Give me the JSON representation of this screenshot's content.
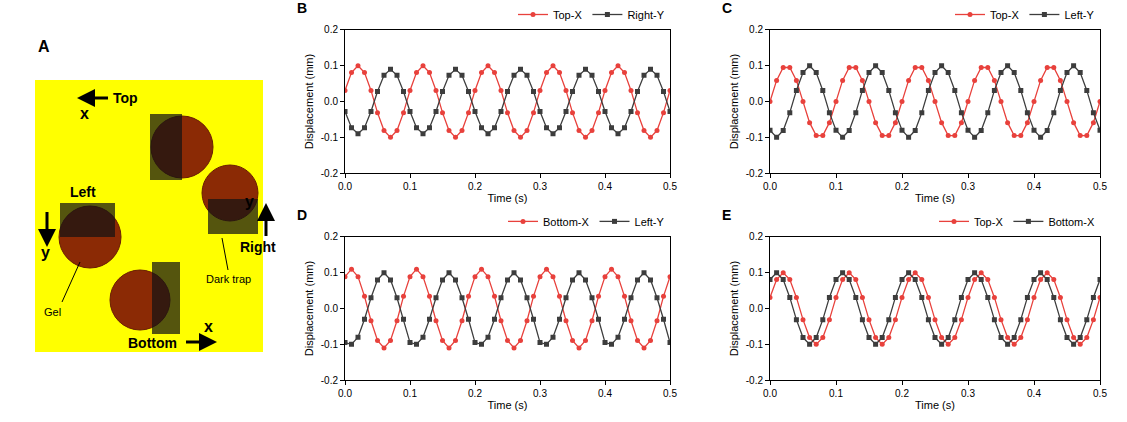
{
  "diagram": {
    "panel": "A",
    "labels": {
      "top": "Top",
      "left": "Left",
      "right": "Right",
      "bottom": "Bottom",
      "x_top": "x",
      "x_bottom": "x",
      "y_left": "y",
      "y_right": "y",
      "gel": "Gel",
      "trap": "Dark trap"
    }
  },
  "chart_data": [
    {
      "panel": "B",
      "type": "line",
      "x_label": "Time (s)",
      "y_label": "Displacement (mm)",
      "x": [
        0,
        0.01,
        0.02,
        0.03,
        0.04,
        0.05,
        0.06,
        0.07,
        0.08,
        0.09,
        0.1,
        0.11,
        0.12,
        0.13,
        0.14,
        0.15,
        0.16,
        0.17,
        0.18,
        0.19,
        0.2,
        0.21,
        0.22,
        0.23,
        0.24,
        0.25,
        0.26,
        0.27,
        0.28,
        0.29,
        0.3,
        0.31,
        0.32,
        0.33,
        0.34,
        0.35,
        0.36,
        0.37,
        0.38,
        0.39,
        0.4,
        0.41,
        0.42,
        0.43,
        0.44,
        0.45,
        0.46,
        0.47,
        0.48,
        0.49,
        0.5
      ],
      "series": [
        {
          "name": "Top-X",
          "color": "#e8413c",
          "marker": "circle",
          "values": [
            0.031,
            0.081,
            0.1,
            0.081,
            0.031,
            -0.031,
            -0.081,
            -0.1,
            -0.081,
            -0.031,
            0.031,
            0.081,
            0.1,
            0.081,
            0.031,
            -0.031,
            -0.081,
            -0.1,
            -0.081,
            -0.031,
            0.031,
            0.081,
            0.1,
            0.081,
            0.031,
            -0.031,
            -0.081,
            -0.1,
            -0.081,
            -0.031,
            0.031,
            0.081,
            0.1,
            0.081,
            0.031,
            -0.031,
            -0.081,
            -0.1,
            -0.081,
            -0.031,
            0.031,
            0.081,
            0.1,
            0.081,
            0.031,
            -0.031,
            -0.081,
            -0.1,
            -0.081,
            -0.031,
            0.031
          ]
        },
        {
          "name": "Right-Y",
          "color": "#3d3d3d",
          "marker": "square",
          "values": [
            -0.028,
            -0.073,
            -0.09,
            -0.073,
            -0.028,
            0.028,
            0.073,
            0.09,
            0.073,
            0.028,
            -0.028,
            -0.073,
            -0.09,
            -0.073,
            -0.028,
            0.028,
            0.073,
            0.09,
            0.073,
            0.028,
            -0.028,
            -0.073,
            -0.09,
            -0.073,
            -0.028,
            0.028,
            0.073,
            0.09,
            0.073,
            0.028,
            -0.028,
            -0.073,
            -0.09,
            -0.073,
            -0.028,
            0.028,
            0.073,
            0.09,
            0.073,
            0.028,
            -0.028,
            -0.073,
            -0.09,
            -0.073,
            -0.028,
            0.028,
            0.073,
            0.09,
            0.073,
            0.028,
            -0.028
          ]
        }
      ],
      "xlim": [
        0,
        0.5
      ],
      "xticks": [
        {
          "value": 0,
          "label": "0.0"
        },
        0.1,
        0.2,
        0.3,
        0.4,
        0.5
      ],
      "ylim": [
        -0.2,
        0.2
      ],
      "yticks": [
        -0.2,
        -0.1,
        {
          "value": 0,
          "label": "0.0"
        },
        0.1,
        0.2
      ],
      "legend": "top right",
      "grid": false
    },
    {
      "panel": "C",
      "type": "line",
      "x_label": "Time (s)",
      "y_label": "Displacement (mm)",
      "x": [
        0,
        0.01,
        0.02,
        0.03,
        0.04,
        0.05,
        0.06,
        0.07,
        0.08,
        0.09,
        0.1,
        0.11,
        0.12,
        0.13,
        0.14,
        0.15,
        0.16,
        0.17,
        0.18,
        0.19,
        0.2,
        0.21,
        0.22,
        0.23,
        0.24,
        0.25,
        0.26,
        0.27,
        0.28,
        0.29,
        0.3,
        0.31,
        0.32,
        0.33,
        0.34,
        0.35,
        0.36,
        0.37,
        0.38,
        0.39,
        0.4,
        0.41,
        0.42,
        0.43,
        0.44,
        0.45,
        0.46,
        0.47,
        0.48,
        0.49,
        0.5
      ],
      "series": [
        {
          "name": "Top-X",
          "color": "#e8413c",
          "marker": "circle",
          "values": [
            0,
            0.059,
            0.095,
            0.095,
            0.059,
            0,
            -0.059,
            -0.095,
            -0.095,
            -0.059,
            0,
            0.059,
            0.095,
            0.095,
            0.059,
            0,
            -0.059,
            -0.095,
            -0.095,
            -0.059,
            0,
            0.059,
            0.095,
            0.095,
            0.059,
            0,
            -0.059,
            -0.095,
            -0.095,
            -0.059,
            0,
            0.059,
            0.095,
            0.095,
            0.059,
            0,
            -0.059,
            -0.095,
            -0.095,
            -0.059,
            0,
            0.059,
            0.095,
            0.095,
            0.059,
            0,
            -0.059,
            -0.095,
            -0.095,
            -0.059,
            0
          ]
        },
        {
          "name": "Left-Y",
          "color": "#3d3d3d",
          "marker": "square",
          "values": [
            -0.08,
            -0.1,
            -0.081,
            -0.031,
            0.031,
            0.081,
            0.1,
            0.081,
            0.031,
            -0.031,
            -0.08,
            -0.1,
            -0.081,
            -0.031,
            0.031,
            0.081,
            0.1,
            0.081,
            0.031,
            -0.031,
            -0.08,
            -0.1,
            -0.081,
            -0.031,
            0.031,
            0.081,
            0.1,
            0.081,
            0.031,
            -0.031,
            -0.08,
            -0.1,
            -0.081,
            -0.031,
            0.031,
            0.081,
            0.1,
            0.081,
            0.031,
            -0.031,
            -0.08,
            -0.1,
            -0.081,
            -0.031,
            0.031,
            0.081,
            0.1,
            0.081,
            0.031,
            -0.031,
            -0.08
          ]
        }
      ],
      "xlim": [
        0,
        0.5
      ],
      "xticks": [
        {
          "value": 0,
          "label": "0.0"
        },
        0.1,
        0.2,
        0.3,
        0.4,
        0.5
      ],
      "ylim": [
        -0.2,
        0.2
      ],
      "yticks": [
        -0.2,
        -0.1,
        {
          "value": 0,
          "label": "0.0"
        },
        0.1,
        0.2
      ],
      "legend": "top right",
      "grid": false
    },
    {
      "panel": "D",
      "type": "line",
      "x_label": "Time (s)",
      "y_label": "Displacement (mm)",
      "x": [
        0,
        0.01,
        0.02,
        0.03,
        0.04,
        0.05,
        0.06,
        0.07,
        0.08,
        0.09,
        0.1,
        0.11,
        0.12,
        0.13,
        0.14,
        0.15,
        0.16,
        0.17,
        0.18,
        0.19,
        0.2,
        0.21,
        0.22,
        0.23,
        0.24,
        0.25,
        0.26,
        0.27,
        0.28,
        0.29,
        0.3,
        0.31,
        0.32,
        0.33,
        0.34,
        0.35,
        0.36,
        0.37,
        0.38,
        0.39,
        0.4,
        0.41,
        0.42,
        0.43,
        0.44,
        0.45,
        0.46,
        0.47,
        0.48,
        0.49,
        0.5
      ],
      "series": [
        {
          "name": "Bottom-X",
          "color": "#e8413c",
          "marker": "circle",
          "values": [
            0.089,
            0.11,
            0.089,
            0.034,
            -0.034,
            -0.089,
            -0.11,
            -0.089,
            -0.034,
            0.034,
            0.089,
            0.11,
            0.089,
            0.034,
            -0.034,
            -0.089,
            -0.11,
            -0.089,
            -0.034,
            0.034,
            0.089,
            0.11,
            0.089,
            0.034,
            -0.034,
            -0.089,
            -0.11,
            -0.089,
            -0.034,
            0.034,
            0.089,
            0.11,
            0.089,
            0.034,
            -0.034,
            -0.089,
            -0.11,
            -0.089,
            -0.034,
            0.034,
            0.089,
            0.11,
            0.089,
            0.034,
            -0.034,
            -0.089,
            -0.11,
            -0.089,
            -0.034,
            0.034,
            0.089
          ]
        },
        {
          "name": "Left-Y",
          "color": "#3d3d3d",
          "marker": "square",
          "values": [
            -0.095,
            -0.1,
            -0.08,
            -0.03,
            0.03,
            0.08,
            0.1,
            0.08,
            0.03,
            -0.03,
            -0.095,
            -0.1,
            -0.08,
            -0.03,
            0.03,
            0.08,
            0.1,
            0.08,
            0.03,
            -0.03,
            -0.095,
            -0.1,
            -0.08,
            -0.03,
            0.03,
            0.08,
            0.1,
            0.08,
            0.03,
            -0.03,
            -0.095,
            -0.1,
            -0.08,
            -0.03,
            0.03,
            0.08,
            0.1,
            0.08,
            0.03,
            -0.03,
            -0.095,
            -0.1,
            -0.08,
            -0.03,
            0.03,
            0.08,
            0.1,
            0.08,
            0.03,
            -0.03,
            -0.095
          ]
        }
      ],
      "xlim": [
        0,
        0.5
      ],
      "xticks": [
        {
          "value": 0,
          "label": "0.0"
        },
        0.1,
        0.2,
        0.3,
        0.4,
        0.5
      ],
      "ylim": [
        -0.2,
        0.2
      ],
      "yticks": [
        -0.2,
        -0.1,
        {
          "value": 0,
          "label": "0.0"
        },
        0.1,
        0.2
      ],
      "legend": "top right",
      "grid": false
    },
    {
      "panel": "E",
      "type": "line",
      "x_label": "Time (s)",
      "y_label": "Displacement (mm)",
      "x": [
        0,
        0.01,
        0.02,
        0.03,
        0.04,
        0.05,
        0.06,
        0.07,
        0.08,
        0.09,
        0.1,
        0.11,
        0.12,
        0.13,
        0.14,
        0.15,
        0.16,
        0.17,
        0.18,
        0.19,
        0.2,
        0.21,
        0.22,
        0.23,
        0.24,
        0.25,
        0.26,
        0.27,
        0.28,
        0.29,
        0.3,
        0.31,
        0.32,
        0.33,
        0.34,
        0.35,
        0.36,
        0.37,
        0.38,
        0.39,
        0.4,
        0.41,
        0.42,
        0.43,
        0.44,
        0.45,
        0.46,
        0.47,
        0.48,
        0.49,
        0.5
      ],
      "series": [
        {
          "name": "Top-X",
          "color": "#e8413c",
          "marker": "circle",
          "values": [
            0.031,
            0.081,
            0.1,
            0.081,
            0.031,
            -0.031,
            -0.081,
            -0.1,
            -0.081,
            -0.031,
            0.031,
            0.081,
            0.1,
            0.081,
            0.031,
            -0.031,
            -0.081,
            -0.1,
            -0.081,
            -0.031,
            0.031,
            0.081,
            0.1,
            0.081,
            0.031,
            -0.031,
            -0.081,
            -0.1,
            -0.081,
            -0.031,
            0.031,
            0.081,
            0.1,
            0.081,
            0.031,
            -0.031,
            -0.081,
            -0.1,
            -0.081,
            -0.031,
            0.031,
            0.081,
            0.1,
            0.081,
            0.031,
            -0.031,
            -0.081,
            -0.1,
            -0.081,
            -0.031,
            0.031
          ]
        },
        {
          "name": "Bottom-X",
          "color": "#3d3d3d",
          "marker": "square",
          "values": [
            0.081,
            0.1,
            0.081,
            0.031,
            -0.031,
            -0.081,
            -0.1,
            -0.081,
            -0.031,
            0.031,
            0.081,
            0.1,
            0.081,
            0.031,
            -0.031,
            -0.081,
            -0.1,
            -0.081,
            -0.031,
            0.031,
            0.081,
            0.1,
            0.081,
            0.031,
            -0.031,
            -0.081,
            -0.1,
            -0.081,
            -0.031,
            0.031,
            0.081,
            0.1,
            0.081,
            0.031,
            -0.031,
            -0.081,
            -0.1,
            -0.081,
            -0.031,
            0.031,
            0.081,
            0.1,
            0.081,
            0.031,
            -0.031,
            -0.081,
            -0.1,
            -0.081,
            -0.031,
            0.031,
            0.081
          ]
        }
      ],
      "xlim": [
        0,
        0.5
      ],
      "xticks": [
        {
          "value": 0,
          "label": "0.0"
        },
        0.1,
        0.2,
        0.3,
        0.4,
        0.5
      ],
      "ylim": [
        -0.2,
        0.2
      ],
      "yticks": [
        -0.2,
        -0.1,
        {
          "value": 0,
          "label": "0.0"
        },
        0.1,
        0.2
      ],
      "legend": "top right",
      "grid": false
    }
  ]
}
